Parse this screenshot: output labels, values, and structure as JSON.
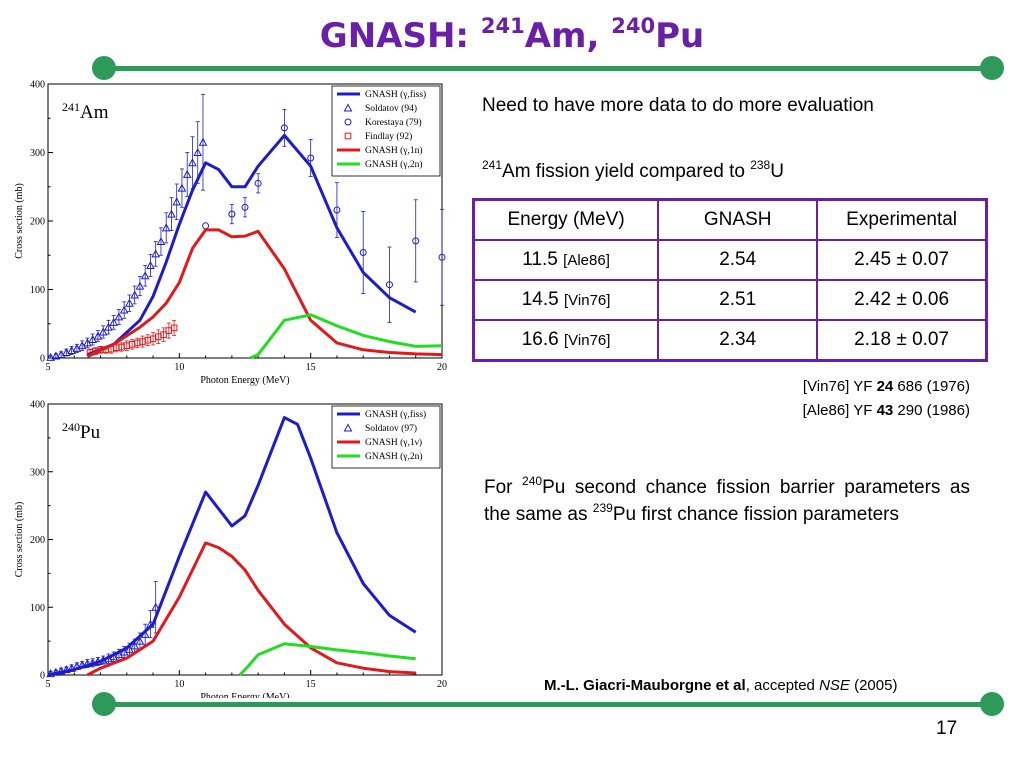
{
  "title": {
    "prefix": "GNASH: ",
    "sup1": "241",
    "el1": "Am",
    "comma": ", ",
    "sup2": "240",
    "el2": "Pu"
  },
  "colors": {
    "title": "#6a1fa8",
    "rule": "#2e9a5a",
    "table_border": "#6a1fa8",
    "fiss": "#1c1ccc",
    "n1": "#e01a1a",
    "n2": "#22dd22"
  },
  "chart_data": [
    {
      "type": "line",
      "panel_label": {
        "sup": "241",
        "el": "Am"
      },
      "xlabel": "Photon Energy (MeV)",
      "ylabel": "Cross section (mb)",
      "xlim": [
        5,
        20
      ],
      "ylim": [
        0,
        400
      ],
      "xticks": [
        5,
        10,
        15,
        20
      ],
      "yticks": [
        0,
        100,
        200,
        300,
        400
      ],
      "legend_position": "top-right",
      "series": [
        {
          "name": "GNASH (γ,fiss)",
          "style": "line",
          "color": "#1c1ccc",
          "x": [
            6.5,
            7.5,
            8.5,
            9.0,
            9.5,
            10.0,
            10.5,
            11.0,
            11.5,
            12.0,
            12.5,
            13.0,
            14.0,
            15.0,
            16.0,
            17.0,
            18.0,
            19.0
          ],
          "y": [
            5,
            20,
            55,
            90,
            140,
            195,
            245,
            285,
            275,
            250,
            250,
            280,
            325,
            280,
            190,
            125,
            88,
            67
          ]
        },
        {
          "name": "Soldatov (94)",
          "style": "triangle",
          "color": "#1c1ccc",
          "x": [
            5.1,
            5.3,
            5.5,
            5.7,
            5.9,
            6.1,
            6.3,
            6.5,
            6.7,
            6.9,
            7.1,
            7.3,
            7.5,
            7.7,
            7.9,
            8.1,
            8.3,
            8.5,
            8.7,
            8.9,
            9.1,
            9.3,
            9.5,
            9.7,
            9.9,
            10.1,
            10.3,
            10.5,
            10.7,
            10.9
          ],
          "y": [
            1,
            3,
            5,
            8,
            11,
            14,
            18,
            22,
            27,
            32,
            38,
            45,
            52,
            60,
            70,
            80,
            92,
            105,
            120,
            135,
            152,
            170,
            190,
            210,
            228,
            248,
            268,
            285,
            300,
            315
          ],
          "err": [
            2,
            3,
            4,
            5,
            6,
            6,
            7,
            7,
            8,
            8,
            9,
            10,
            10,
            11,
            12,
            12,
            13,
            14,
            15,
            16,
            18,
            20,
            22,
            24,
            26,
            28,
            32,
            38,
            45,
            70
          ]
        },
        {
          "name": "Korestaya (79)",
          "style": "circle",
          "color": "#1c1ccc",
          "x": [
            11.0,
            12.0,
            12.5,
            13.0,
            14.0,
            15.0,
            16.0,
            17.0,
            18.0,
            19.0,
            20.0
          ],
          "y": [
            193,
            210,
            220,
            255,
            336,
            292,
            216,
            154,
            107,
            171,
            147
          ],
          "err": [
            0,
            14,
            14,
            14,
            27,
            27,
            40,
            60,
            55,
            60,
            70
          ]
        },
        {
          "name": "Findlay (92)",
          "style": "square",
          "color": "#e01a1a",
          "x": [
            6.6,
            6.8,
            7.0,
            7.2,
            7.4,
            7.6,
            7.8,
            8.0,
            8.2,
            8.4,
            8.6,
            8.8,
            9.0,
            9.2,
            9.4,
            9.6,
            9.8
          ],
          "y": [
            8,
            10,
            12,
            12,
            13,
            15,
            16,
            18,
            20,
            22,
            24,
            26,
            28,
            31,
            34,
            40,
            44
          ],
          "err": [
            5,
            5,
            5,
            5,
            6,
            6,
            6,
            7,
            7,
            7,
            8,
            8,
            9,
            10,
            10,
            11,
            11
          ]
        },
        {
          "name": "GNASH (γ,1n)",
          "style": "line",
          "color": "#e01a1a",
          "x": [
            6.5,
            7.5,
            8.5,
            9.0,
            9.5,
            10.0,
            10.5,
            11.0,
            11.5,
            12.0,
            12.5,
            13.0,
            14.0,
            15.0,
            16.0,
            17.0,
            18.0,
            19.0,
            20.0
          ],
          "y": [
            2,
            20,
            45,
            60,
            80,
            110,
            160,
            187,
            187,
            177,
            178,
            185,
            130,
            55,
            22,
            12,
            8,
            6,
            5
          ]
        },
        {
          "name": "GNASH (γ,2n)",
          "style": "line",
          "color": "#22dd22",
          "x": [
            12.7,
            13.0,
            14.0,
            15.0,
            16.0,
            17.0,
            18.0,
            19.0,
            20.0
          ],
          "y": [
            0,
            5,
            55,
            63,
            47,
            33,
            24,
            17,
            18
          ]
        }
      ]
    },
    {
      "type": "line",
      "panel_label": {
        "sup": "240",
        "el": "Pu"
      },
      "xlabel": "Photon Energy (MeV)",
      "ylabel": "Cross section (mb)",
      "xlim": [
        5,
        20
      ],
      "ylim": [
        0,
        400
      ],
      "xticks": [
        5,
        10,
        15,
        20
      ],
      "yticks": [
        0,
        100,
        200,
        300,
        400
      ],
      "legend_position": "top-right",
      "series": [
        {
          "name": "GNASH (γ,fiss)",
          "style": "line",
          "color": "#1c1ccc",
          "x": [
            5.0,
            6.0,
            7.0,
            8.0,
            9.0,
            10.0,
            11.0,
            12.0,
            12.5,
            13.0,
            14.0,
            14.5,
            15.0,
            16.0,
            17.0,
            18.0,
            19.0
          ],
          "y": [
            0,
            8,
            20,
            40,
            75,
            175,
            270,
            220,
            235,
            280,
            380,
            370,
            320,
            210,
            135,
            88,
            63
          ]
        },
        {
          "name": "Soldatov (97)",
          "style": "triangle",
          "color": "#1c1ccc",
          "x": [
            5.1,
            5.3,
            5.5,
            5.7,
            5.9,
            6.1,
            6.3,
            6.5,
            6.7,
            6.9,
            7.1,
            7.3,
            7.5,
            7.7,
            7.9,
            8.1,
            8.3,
            8.5,
            8.7,
            8.9,
            9.1
          ],
          "y": [
            2,
            4,
            6,
            8,
            10,
            13,
            15,
            17,
            18,
            20,
            22,
            24,
            27,
            30,
            34,
            38,
            43,
            50,
            60,
            75,
            100
          ],
          "err": [
            3,
            3,
            4,
            4,
            5,
            5,
            5,
            6,
            6,
            6,
            6,
            7,
            7,
            8,
            8,
            9,
            10,
            12,
            15,
            20,
            38
          ]
        },
        {
          "name": "GNASH (γ,1ν)",
          "style": "line",
          "color": "#e01a1a",
          "x": [
            6.5,
            7.0,
            8.0,
            9.0,
            10.0,
            11.0,
            11.5,
            12.0,
            12.5,
            13.0,
            14.0,
            15.0,
            16.0,
            17.0,
            18.0,
            19.0
          ],
          "y": [
            0,
            10,
            25,
            50,
            115,
            195,
            188,
            175,
            155,
            125,
            75,
            40,
            18,
            10,
            5,
            3
          ]
        },
        {
          "name": "GNASH (γ,2n)",
          "style": "line",
          "color": "#22dd22",
          "x": [
            12.3,
            12.6,
            13.0,
            14.0,
            15.0,
            16.0,
            17.0,
            18.0,
            19.0
          ],
          "y": [
            0,
            12,
            30,
            46,
            42,
            37,
            33,
            28,
            24
          ]
        }
      ]
    }
  ],
  "intro": "Need to have more data to do more evaluation",
  "yield_heading": {
    "sup1": "241",
    "text1": "Am fission yield compared to ",
    "sup2": "238",
    "text2": "U"
  },
  "table": {
    "headers": [
      "Energy (MeV)",
      "GNASH",
      "Experimental"
    ],
    "rows": [
      {
        "energy": "11.5",
        "ref": "[Ale86]",
        "gnash": "2.54",
        "exp": "2.45 ± 0.07"
      },
      {
        "energy": "14.5",
        "ref": "[Vin76]",
        "gnash": "2.51",
        "exp": "2.42 ± 0.06"
      },
      {
        "energy": "16.6",
        "ref": "[Vin76]",
        "gnash": "2.34",
        "exp": "2.18 ± 0.07"
      }
    ]
  },
  "refs": [
    {
      "pre": "[Vin76] YF ",
      "vol": "24",
      "post": " 686 (1976)"
    },
    {
      "pre": "[Ale86] YF ",
      "vol": "43",
      "post": " 290 (1986)"
    }
  ],
  "para": {
    "t1": "For ",
    "sup1": "240",
    "t2": "Pu second chance fission barrier parameters as the same as ",
    "sup2": "239",
    "t3": "Pu first chance fission parameters"
  },
  "credit": {
    "authors": "M.-L. Giacri-Mauborgne et al",
    "mid": ", accepted ",
    "journal": "NSE",
    "year": " (2005)"
  },
  "page_number": "17"
}
